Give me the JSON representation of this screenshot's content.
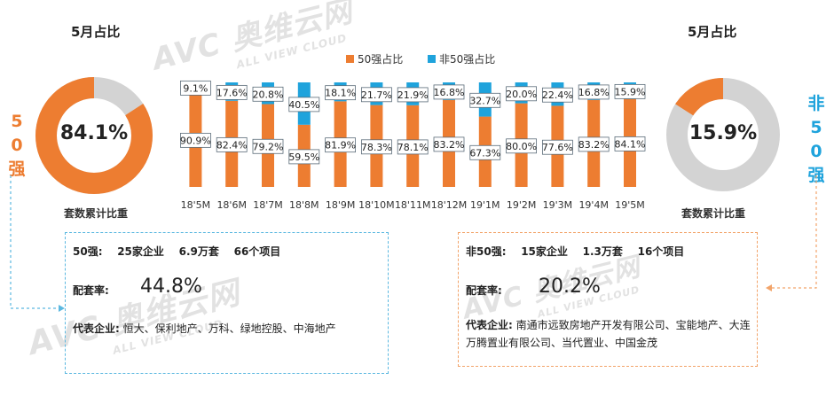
{
  "left_panel": {
    "title": "5月占比",
    "donut_percent": "84.1%",
    "donut_fraction": 0.841,
    "tag": "50强",
    "caption": "套数累计比重"
  },
  "right_panel": {
    "title": "5月占比",
    "donut_percent": "15.9%",
    "donut_fraction": 0.159,
    "tag": "非50强",
    "caption": "套数累计比重"
  },
  "left_box": {
    "summary": "50强:    25家企业    6.9万套    66个项目",
    "rate_label": "配套率:",
    "rate_value": "44.8%",
    "rep_label": "代表企业:",
    "rep_text": "恒大、保利地产、万科、绿地控股、中海地产"
  },
  "right_box": {
    "summary": "非50强:    15家企业    1.3万套    16个项目",
    "rate_label": "配套率:",
    "rate_value": "20.2%",
    "rep_label": "代表企业:",
    "rep_text": "南通市远致房地产开发有限公司、宝能地产、大连万腾置业有限公司、当代置业、中国金茂"
  },
  "watermark": {
    "brand": "AVC",
    "cn": "奥维云网",
    "en": "ALL VIEW CLOUD"
  },
  "colors": {
    "top50": "#ED7D31",
    "non_top50": "#1FA3DC",
    "donut_track": "#D3D3D3",
    "left_box_border": "#5BB8E0",
    "right_box_border": "#F2A46A"
  },
  "chart_data": {
    "type": "bar",
    "stacked": true,
    "categories": [
      "18'5M",
      "18'6M",
      "18'7M",
      "18'8M",
      "18'9M",
      "18'10M",
      "18'11M",
      "18'12M",
      "19'1M",
      "19'2M",
      "19'3M",
      "19'4M",
      "19'5M"
    ],
    "series": [
      {
        "name": "50强占比",
        "values": [
          90.9,
          82.4,
          79.2,
          59.5,
          81.9,
          78.3,
          78.1,
          83.2,
          67.3,
          80.0,
          77.6,
          83.2,
          84.1
        ]
      },
      {
        "name": "非50强占比",
        "values": [
          9.1,
          17.6,
          20.8,
          40.5,
          18.1,
          21.7,
          21.9,
          16.8,
          32.7,
          20.0,
          22.4,
          16.8,
          15.9
        ]
      }
    ],
    "ylim": [
      0,
      100
    ],
    "legend": "top-center",
    "grid": false
  }
}
